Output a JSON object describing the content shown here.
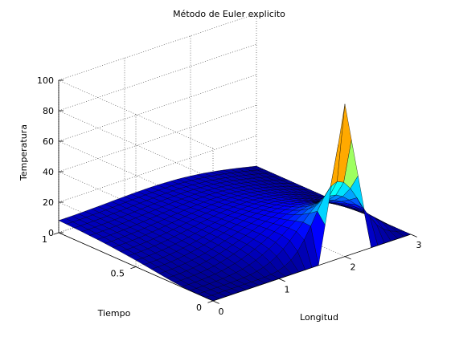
{
  "chart_data": {
    "type": "surface",
    "title": "Método de Euler explicito",
    "xlabel": "Longitud",
    "ylabel": "Tiempo",
    "zlabel": "Temperatura",
    "xlim": [
      0,
      3
    ],
    "ylim": [
      0,
      1
    ],
    "zlim": [
      0,
      100
    ],
    "xticks": [
      0,
      1,
      2,
      3
    ],
    "yticks": [
      0,
      0.5,
      1
    ],
    "zticks": [
      0,
      20,
      40,
      60,
      80,
      100
    ],
    "xtick_labels": [
      "0",
      "1",
      "2",
      "3"
    ],
    "ytick_labels": [
      "0",
      "0.5",
      "1"
    ],
    "ztick_labels": [
      "0",
      "20",
      "40",
      "60",
      "80",
      "100"
    ],
    "grid": true,
    "box": true,
    "colormap": "jet",
    "colormap_stops": [
      "#00008f",
      "#0000ff",
      "#00ffff",
      "#ffff00",
      "#ff0000",
      "#800000"
    ],
    "initial_condition": {
      "description_values": "T(x,0) = 0 except a triangular pulse near x≈2 peaking at 100",
      "x": [
        0,
        1.6,
        2.0,
        2.4,
        3.0
      ],
      "T": [
        0,
        0,
        100,
        0,
        0
      ]
    },
    "surface_grid": {
      "nx": 31,
      "nt": 21
    }
  }
}
